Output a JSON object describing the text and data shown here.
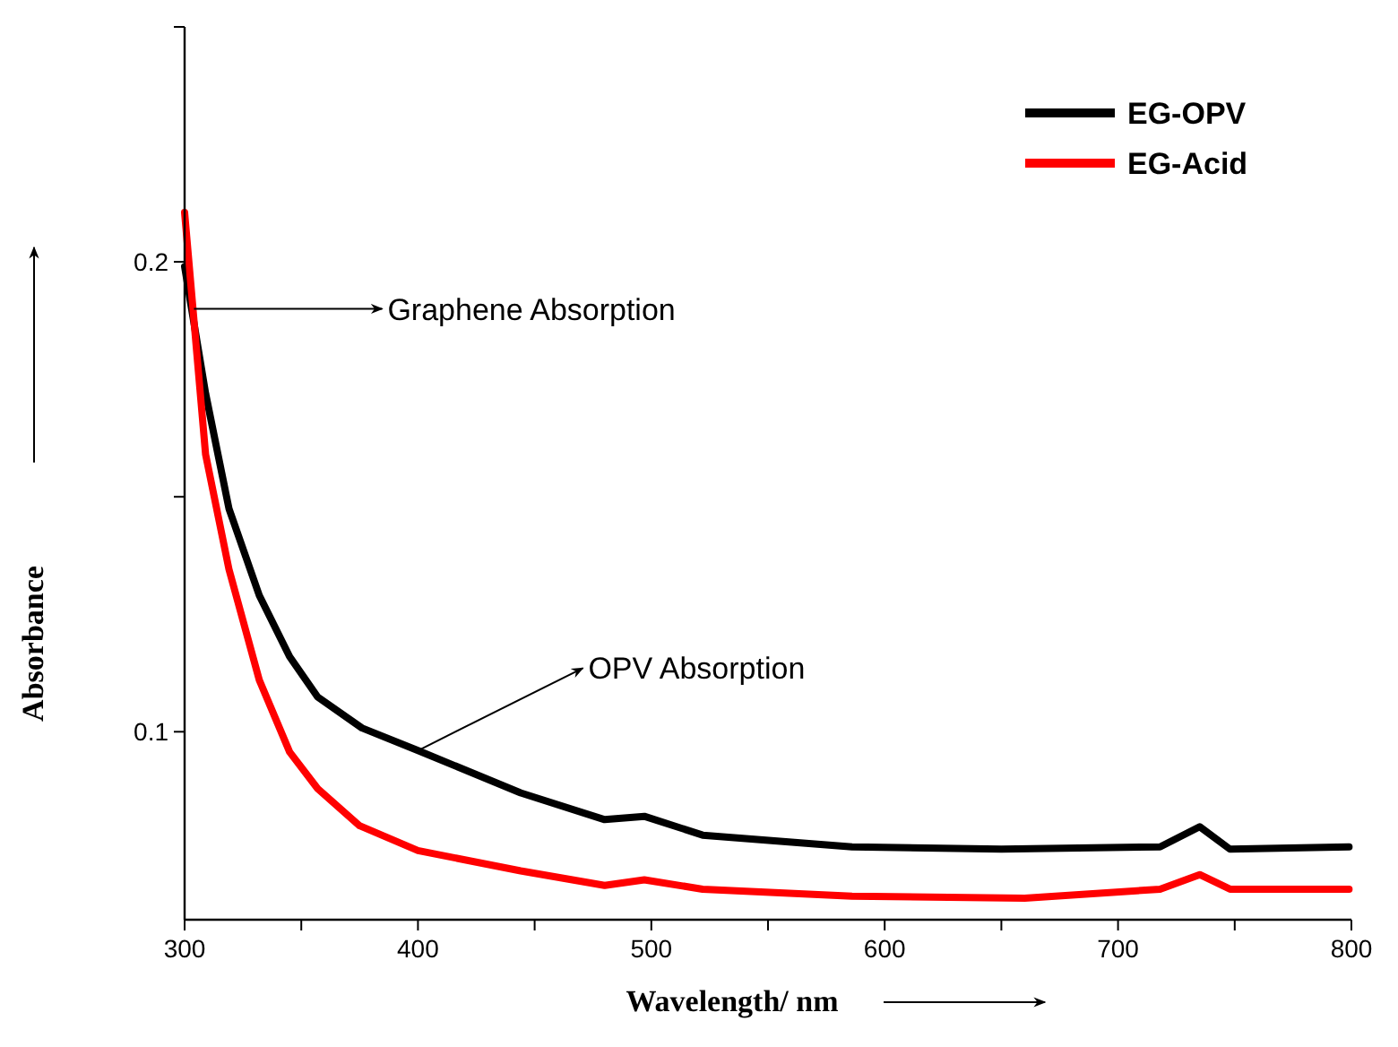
{
  "chart_data": {
    "type": "line",
    "xlabel": "Wavelength/ nm",
    "ylabel": "Absorbance",
    "xlim": [
      300,
      800
    ],
    "ylim": [
      0.06,
      0.25
    ],
    "xticks": [
      300,
      {
        "value": 350,
        "label": null
      },
      400,
      {
        "value": 450,
        "label": null
      },
      500,
      {
        "value": 550,
        "label": null
      },
      600,
      {
        "value": 650,
        "label": null
      },
      700,
      {
        "value": 750,
        "label": null
      },
      800
    ],
    "yticks": [
      0.1,
      {
        "value": 0.15,
        "label": null
      },
      0.2,
      {
        "value": 0.25,
        "label": null
      }
    ],
    "grid": false,
    "legend": "top right",
    "marker": "none",
    "line_style": "solid",
    "annotations": [
      {
        "text": "Graphene Absorption",
        "x": 304,
        "y": 0.19
      },
      {
        "text": "OPV Absorption",
        "x": 400,
        "y": 0.096
      }
    ],
    "series": [
      {
        "name": "EG-OPV",
        "color": "#000000",
        "x": [
          300,
          309,
          319,
          332,
          345,
          357,
          376,
          400,
          444,
          480,
          497,
          522,
          586,
          650,
          718,
          735,
          748,
          799
        ],
        "values": [
          0.199,
          0.172,
          0.1475,
          0.129,
          0.116,
          0.1074,
          0.1008,
          0.096,
          0.087,
          0.0813,
          0.082,
          0.078,
          0.0755,
          0.075,
          0.0755,
          0.0798,
          0.075,
          0.0755
        ]
      },
      {
        "name": "EG-Acid",
        "color": "#ff0000",
        "x": [
          300,
          309,
          319,
          332,
          345,
          357,
          375,
          400,
          444,
          480,
          497,
          522,
          586,
          660,
          718,
          735,
          748,
          799
        ],
        "values": [
          0.2105,
          0.159,
          0.1346,
          0.111,
          0.0957,
          0.0879,
          0.08,
          0.0747,
          0.0704,
          0.0673,
          0.0685,
          0.0665,
          0.065,
          0.0646,
          0.0665,
          0.0696,
          0.0665,
          0.0665
        ]
      }
    ]
  }
}
